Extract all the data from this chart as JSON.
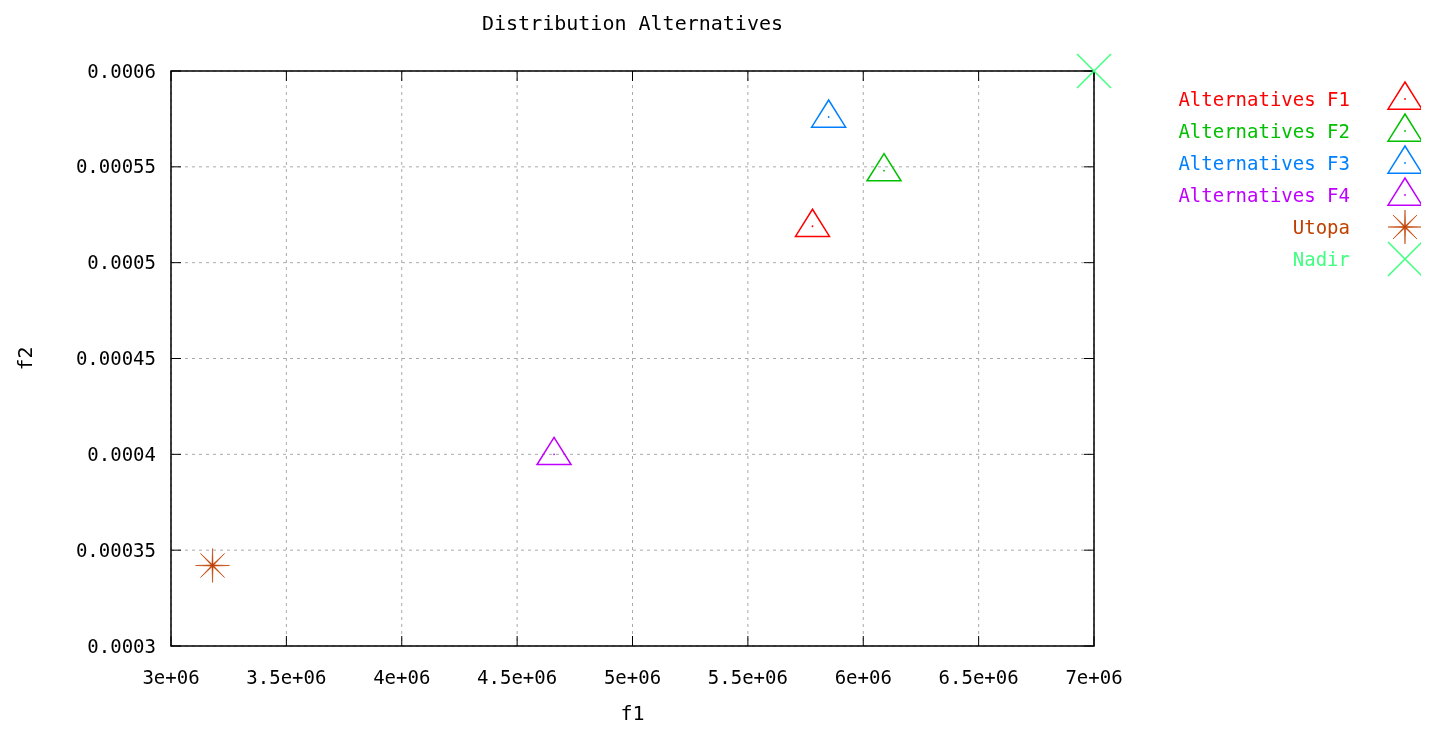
{
  "chart_data": {
    "type": "scatter",
    "title": "Distribution Alternatives",
    "xlabel": "f1",
    "ylabel": "f2",
    "xlim": [
      3000000,
      7000000
    ],
    "ylim": [
      0.0003,
      0.0006
    ],
    "xticks": [
      {
        "value": 3000000,
        "label": "3e+06"
      },
      {
        "value": 3500000,
        "label": "3.5e+06"
      },
      {
        "value": 4000000,
        "label": "4e+06"
      },
      {
        "value": 4500000,
        "label": "4.5e+06"
      },
      {
        "value": 5000000,
        "label": "5e+06"
      },
      {
        "value": 5500000,
        "label": "5.5e+06"
      },
      {
        "value": 6000000,
        "label": "6e+06"
      },
      {
        "value": 6500000,
        "label": "6.5e+06"
      },
      {
        "value": 7000000,
        "label": "7e+06"
      }
    ],
    "yticks": [
      0.0003,
      0.00035,
      0.0004,
      0.00045,
      0.0005,
      0.00055,
      0.0006
    ],
    "grid": true,
    "legend": "top right",
    "series": [
      {
        "name": "Alternatives F1",
        "color": "#ff0000",
        "marker": "triangle",
        "x": [
          5780000
        ],
        "values": [
          0.000519
        ]
      },
      {
        "name": "Alternatives F2",
        "color": "#00c000",
        "marker": "triangle",
        "x": [
          6090000
        ],
        "values": [
          0.000548
        ]
      },
      {
        "name": "Alternatives F3",
        "color": "#0080ff",
        "marker": "triangle",
        "x": [
          5850000
        ],
        "values": [
          0.000576
        ]
      },
      {
        "name": "Alternatives F4",
        "color": "#c000ff",
        "marker": "triangle",
        "x": [
          4660000
        ],
        "values": [
          0.0004
        ]
      },
      {
        "name": "Utopa",
        "color": "#c04000",
        "marker": "star",
        "x": [
          3180000
        ],
        "values": [
          0.000342
        ]
      },
      {
        "name": "Nadir",
        "color": "#40ff80",
        "marker": "cross",
        "x": [
          7000000
        ],
        "values": [
          0.0006
        ]
      }
    ]
  }
}
